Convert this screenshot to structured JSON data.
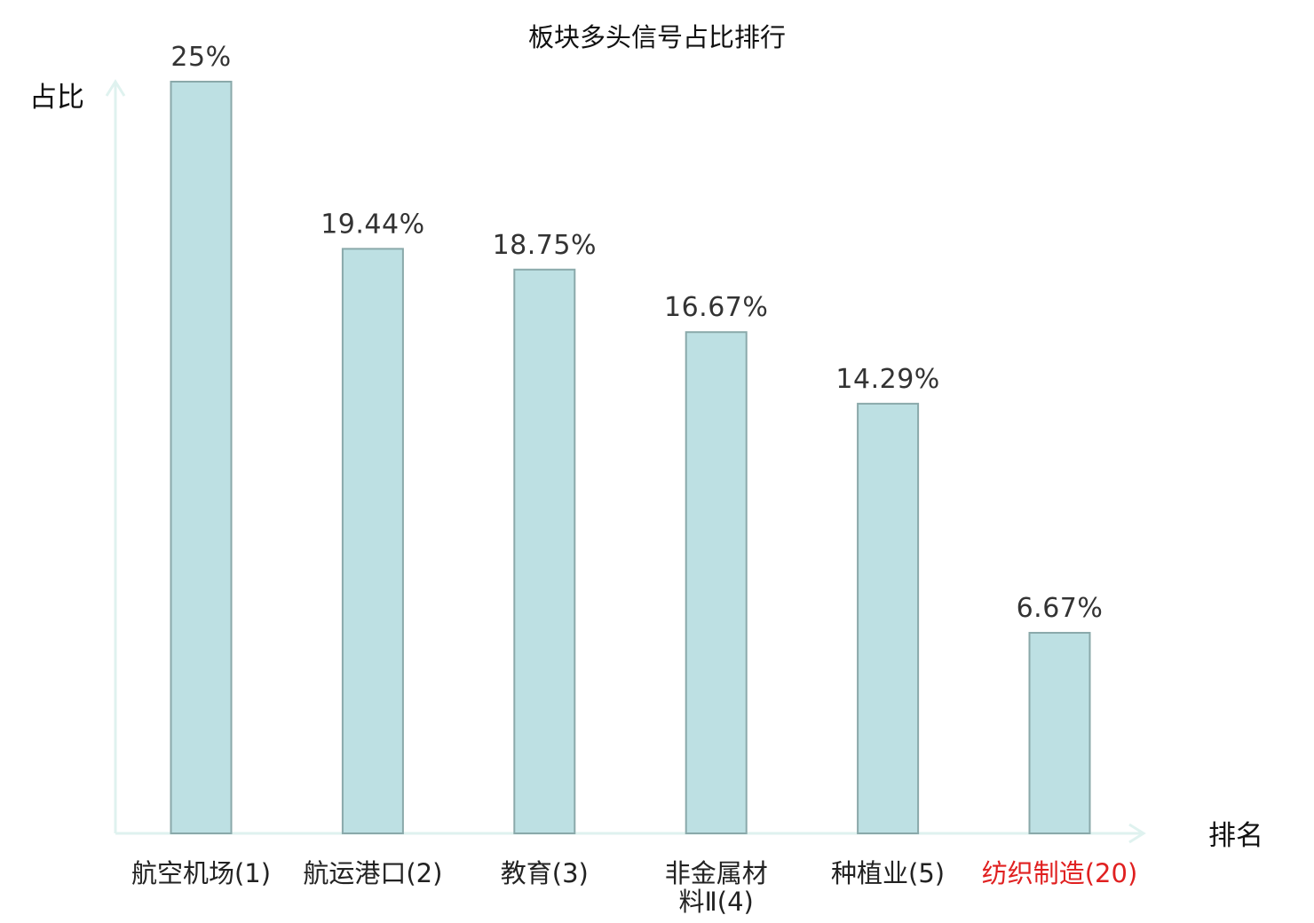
{
  "chart_data": {
    "type": "bar",
    "title": "板块多头信号占比排行",
    "ylabel": "占比",
    "xlabel": "排名",
    "categories": [
      {
        "name": "航空机场",
        "rank": "(1)",
        "lines": [
          "航空机场(1)"
        ],
        "highlight": false
      },
      {
        "name": "航运港口",
        "rank": "(2)",
        "lines": [
          "航运港口(2)"
        ],
        "highlight": false
      },
      {
        "name": "教育",
        "rank": "(3)",
        "lines": [
          "教育(3)"
        ],
        "highlight": false
      },
      {
        "name": "非金属材料Ⅱ",
        "rank": "(4)",
        "lines": [
          "非金属材",
          "料Ⅱ(4)"
        ],
        "highlight": false
      },
      {
        "name": "种植业",
        "rank": "(5)",
        "lines": [
          "种植业(5)"
        ],
        "highlight": false
      },
      {
        "name": "纺织制造",
        "rank": "(20)",
        "lines": [
          "纺织制造(20)"
        ],
        "highlight": true
      }
    ],
    "values": [
      25,
      19.44,
      18.75,
      16.67,
      14.29,
      6.67
    ],
    "value_labels": [
      "25%",
      "19.44%",
      "18.75%",
      "16.67%",
      "14.29%",
      "6.67%"
    ],
    "ylim": [
      0,
      25
    ],
    "grid": false,
    "legend": "none",
    "colors": {
      "bar_fill": "#bde0e3",
      "bar_stroke": "#8aa9aa",
      "axis": "#dff2ef",
      "highlight_label": "#e02020"
    }
  }
}
